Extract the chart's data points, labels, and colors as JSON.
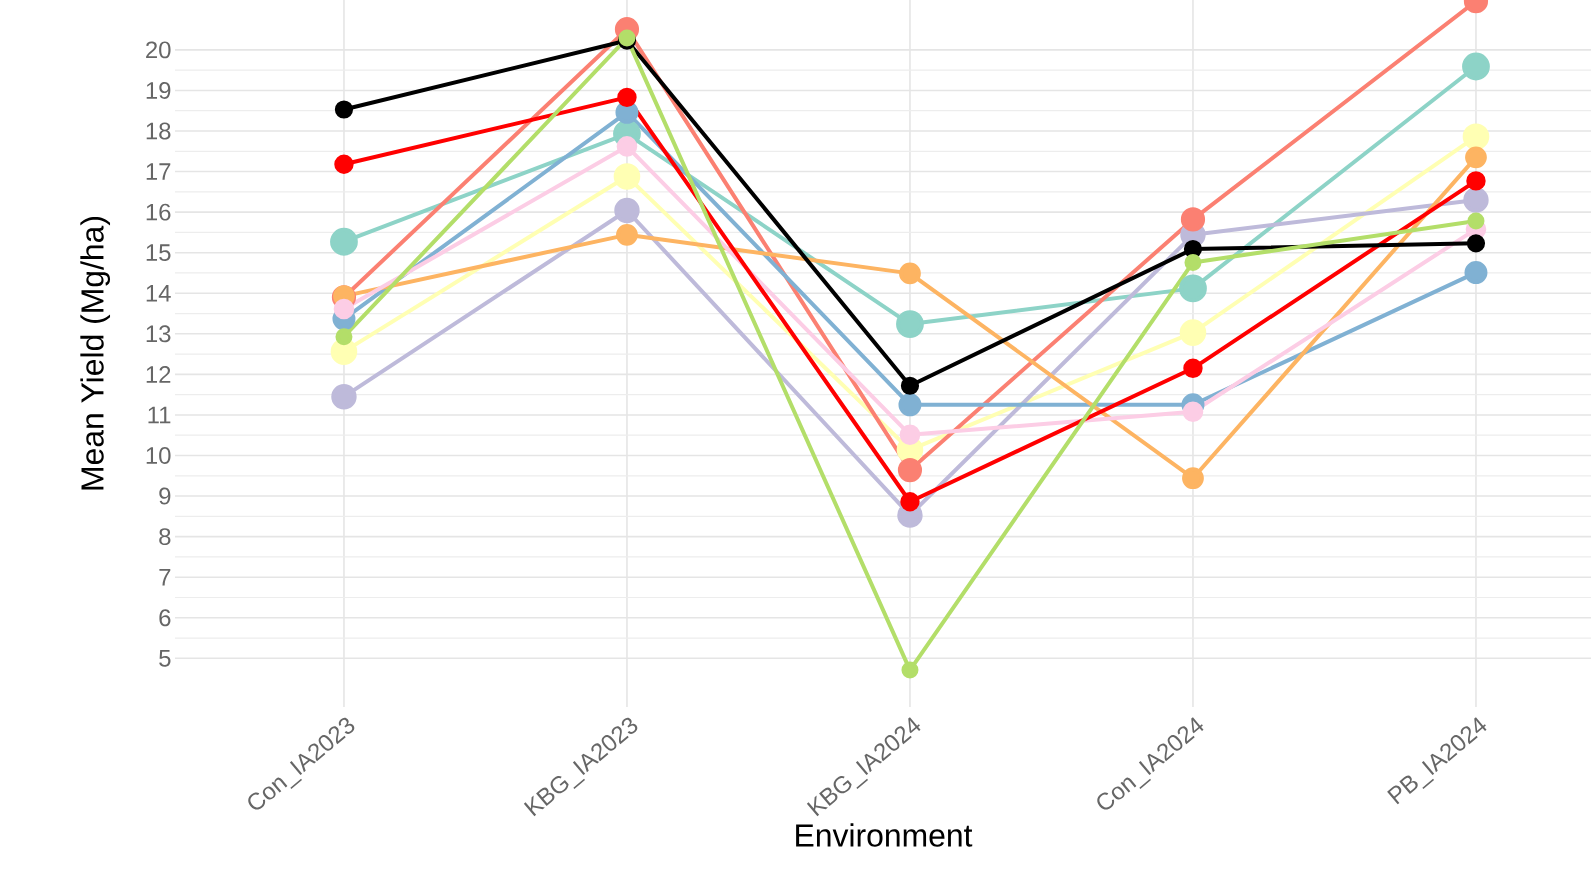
{
  "chart_data": {
    "type": "line",
    "xlabel": "Environment",
    "ylabel": "Mean Yield (Mg/ha)",
    "categories": [
      "Con_IA2023",
      "KBG_IA2023",
      "KBG_IA2024",
      "Con_IA2024",
      "PB_IA2024"
    ],
    "series": [
      {
        "color": "#8dd3c7",
        "values": [
          15.27,
          17.93,
          13.24,
          14.12,
          19.59
        ]
      },
      {
        "color": "#ffffb3",
        "values": [
          12.56,
          16.88,
          10.14,
          13.03,
          17.86
        ]
      },
      {
        "color": "#bebada",
        "values": [
          11.45,
          16.04,
          8.53,
          15.44,
          16.3
        ]
      },
      {
        "color": "#fb8072",
        "values": [
          13.9,
          20.51,
          9.64,
          15.82,
          21.2
        ]
      },
      {
        "color": "#80b1d3",
        "values": [
          13.37,
          18.46,
          11.25,
          11.25,
          14.51
        ]
      },
      {
        "color": "#fdb462",
        "values": [
          13.93,
          15.44,
          14.49,
          9.44,
          17.35
        ]
      },
      {
        "color": "#fccde5",
        "values": [
          13.61,
          17.62,
          10.51,
          11.08,
          15.58
        ]
      },
      {
        "color": "#ff0000",
        "values": [
          17.18,
          18.83,
          8.86,
          12.15,
          16.77
        ]
      },
      {
        "color": "#000000",
        "values": [
          18.53,
          20.23,
          11.72,
          15.09,
          15.23
        ]
      },
      {
        "color": "#b3de69",
        "values": [
          12.93,
          20.29,
          4.71,
          14.76,
          15.78
        ]
      }
    ],
    "ylim": [
      3.8,
      21.23
    ],
    "yticks": [
      5,
      6,
      7,
      8,
      9,
      10,
      11,
      12,
      13,
      14,
      15,
      16,
      17,
      18,
      19,
      20
    ],
    "grid": true,
    "marker": "circle",
    "line_style": "solid"
  }
}
